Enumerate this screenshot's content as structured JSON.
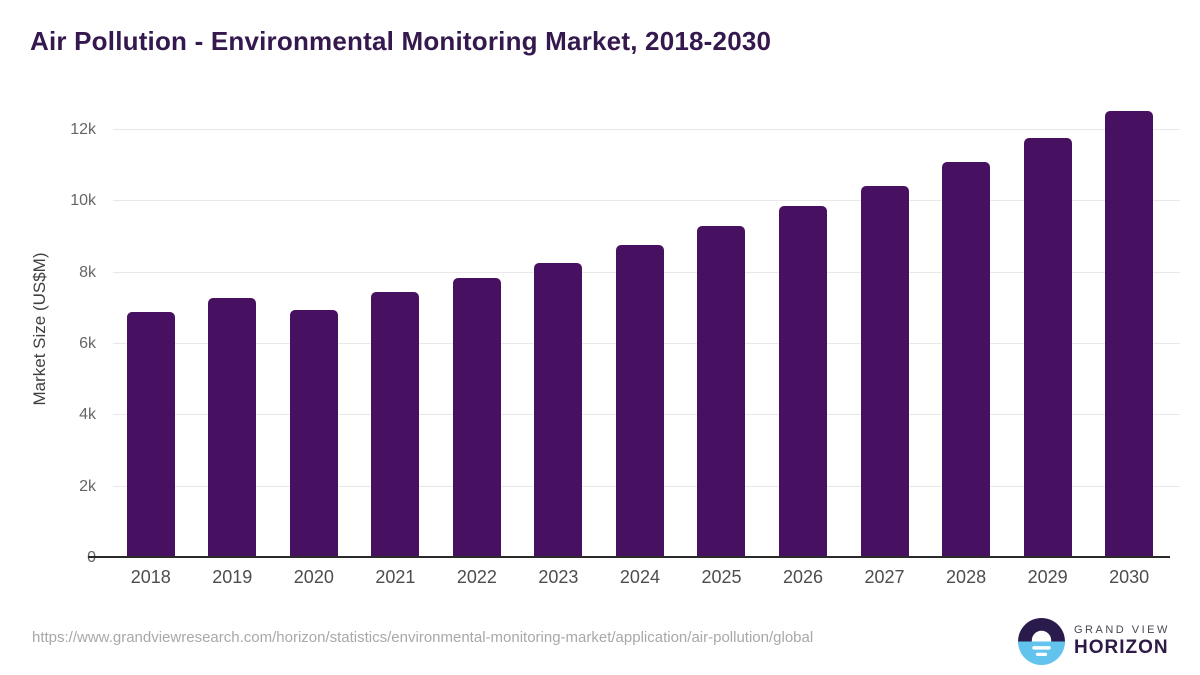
{
  "title": "Air Pollution - Environmental Monitoring Market, 2018-2030",
  "colors": {
    "bar": "#481060",
    "title_text": "#35184e",
    "gridline": "#e8e8e8",
    "axis": "#2a2a2a",
    "logo_dark": "#2b1b4d",
    "logo_blue": "#62c3ec"
  },
  "chart_data": {
    "type": "bar",
    "title": "Air Pollution - Environmental Monitoring Market, 2018-2030",
    "categories": [
      "2018",
      "2019",
      "2020",
      "2021",
      "2022",
      "2023",
      "2024",
      "2025",
      "2026",
      "2027",
      "2028",
      "2029",
      "2030"
    ],
    "values": [
      6910,
      7280,
      6950,
      7450,
      7840,
      8270,
      8790,
      9300,
      9860,
      10440,
      11100,
      11780,
      12530
    ],
    "xlabel": "",
    "ylabel": "Market Size (US$M)",
    "ytick_labels": [
      "0",
      "2k",
      "4k",
      "6k",
      "8k",
      "10k",
      "12k"
    ],
    "ytick_values": [
      0,
      2000,
      4000,
      6000,
      8000,
      10000,
      12000
    ],
    "ylim": [
      0,
      12841
    ],
    "grid": "horizontal-only",
    "legend": "none",
    "bar_color": "#481060"
  },
  "footer": {
    "source_url": "https://www.grandviewresearch.com/horizon/statistics/environmental-monitoring-market/application/air-pollution/global",
    "logo_line1": "GRAND VIEW",
    "logo_line2": "HORIZON"
  }
}
